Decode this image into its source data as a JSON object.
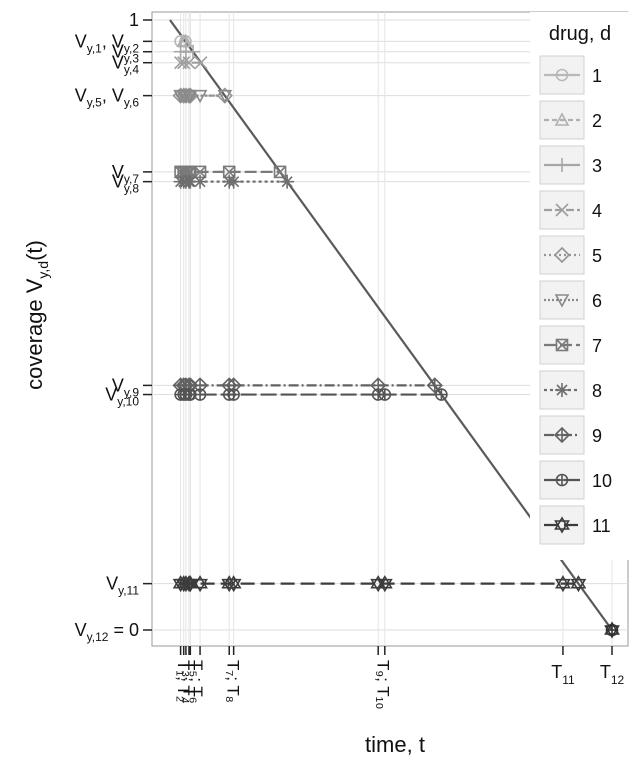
{
  "chart_data": {
    "type": "line",
    "title": "",
    "ylabel_main": "coverage  V",
    "ylabel_sub": "y,d",
    "ylabel_tail": "(t)",
    "xlabel": "time, t",
    "ylim": [
      0,
      1
    ],
    "grid": true,
    "legend_position": "right",
    "legend": {
      "title": "drug, d",
      "entries": [
        "1",
        "2",
        "3",
        "4",
        "5",
        "6",
        "7",
        "8",
        "9",
        "10",
        "11"
      ]
    },
    "x_ticks": [
      {
        "id": "t1",
        "x": 0.024,
        "label": "T",
        "sub": "1"
      },
      {
        "id": "t2",
        "x": 0.031,
        "label": "T",
        "sub": "2"
      },
      {
        "id": "t3",
        "x": 0.036,
        "label": "T",
        "sub": "3"
      },
      {
        "id": "t4",
        "x": 0.043,
        "label": "T",
        "sub": "4"
      },
      {
        "id": "t5",
        "x": 0.046,
        "label": "T",
        "sub": "5"
      },
      {
        "id": "t6",
        "x": 0.068,
        "label": "T",
        "sub": "6"
      },
      {
        "id": "t7",
        "x": 0.134,
        "label": "T",
        "sub": "7"
      },
      {
        "id": "t8",
        "x": 0.144,
        "label": "T",
        "sub": "8"
      },
      {
        "id": "t9",
        "x": 0.471,
        "label": "T",
        "sub": "9"
      },
      {
        "id": "t10",
        "x": 0.486,
        "label": "T",
        "sub": "10"
      },
      {
        "id": "t11",
        "x": 0.889,
        "label": "T",
        "sub": "11"
      },
      {
        "id": "t12",
        "x": 1.0,
        "label": "T",
        "sub": "12"
      }
    ],
    "x_tick_text": {
      "t1_t2": "T₁; T₂",
      "t3_t4": "T₃; T₄",
      "t5_t6": "T₅; T₆",
      "t7_t8": "T₇; T₈",
      "t9_t10": "T₉; T₁₀"
    },
    "y_ticks": [
      {
        "id": "one",
        "y": 1.0,
        "parts": [
          [
            "1",
            ""
          ]
        ]
      },
      {
        "id": "v12",
        "y": 0.965,
        "parts": [
          [
            "V",
            "y,1"
          ],
          [
            ", V",
            "y,2"
          ]
        ]
      },
      {
        "id": "v3",
        "y": 0.948,
        "parts": [
          [
            "V",
            "y,3"
          ]
        ]
      },
      {
        "id": "v4",
        "y": 0.93,
        "parts": [
          [
            "V",
            "y,4"
          ]
        ]
      },
      {
        "id": "v56",
        "y": 0.876,
        "parts": [
          [
            "V",
            "y,5"
          ],
          [
            ", V",
            "y,6"
          ]
        ]
      },
      {
        "id": "v7",
        "y": 0.751,
        "parts": [
          [
            "V",
            "y,7"
          ]
        ]
      },
      {
        "id": "v8",
        "y": 0.735,
        "parts": [
          [
            "V",
            "y,8"
          ]
        ]
      },
      {
        "id": "v9",
        "y": 0.401,
        "parts": [
          [
            "V",
            "y,9"
          ]
        ]
      },
      {
        "id": "v10",
        "y": 0.386,
        "parts": [
          [
            "V",
            "y,10"
          ]
        ]
      },
      {
        "id": "v11",
        "y": 0.076,
        "parts": [
          [
            "V",
            "y,11"
          ]
        ]
      },
      {
        "id": "v12zero",
        "y": 0.0,
        "parts": [
          [
            "V",
            "y,12"
          ],
          [
            " = 0",
            ""
          ]
        ]
      }
    ],
    "diagonal": {
      "x": [
        0.0,
        1.0
      ],
      "y": [
        1.0,
        0.0
      ]
    },
    "series": [
      {
        "name": "1",
        "marker": "circle",
        "color": "#b8b8b8",
        "dash": "",
        "level": 0.965,
        "points_x": [
          0.024
        ]
      },
      {
        "name": "2",
        "marker": "triangle-up",
        "color": "#b0b0b0",
        "dash": "5,3",
        "level": 0.965,
        "points_x": [
          0.031
        ]
      },
      {
        "name": "3",
        "marker": "plus",
        "color": "#a6a6a6",
        "dash": "",
        "level": 0.948,
        "points_x": [
          0.024,
          0.036
        ]
      },
      {
        "name": "4",
        "marker": "cross",
        "color": "#9e9e9e",
        "dash": "8,3",
        "level": 0.93,
        "points_x": [
          0.024,
          0.031,
          0.043
        ]
      },
      {
        "name": "5",
        "marker": "diamond",
        "color": "#949494",
        "dash": "2,3",
        "level": 0.876,
        "points_x": [
          0.024,
          0.031,
          0.036,
          0.043,
          0.046
        ]
      },
      {
        "name": "6",
        "marker": "triangle-down",
        "color": "#8a8a8a",
        "dash": "2,2",
        "level": 0.876,
        "points_x": [
          0.024,
          0.031,
          0.036,
          0.043,
          0.046,
          0.068
        ]
      },
      {
        "name": "7",
        "marker": "square-x",
        "color": "#7a7a7a",
        "dash": "12,4",
        "level": 0.751,
        "points_x": [
          0.024,
          0.031,
          0.036,
          0.043,
          0.046,
          0.068,
          0.134
        ]
      },
      {
        "name": "8",
        "marker": "asterisk",
        "color": "#6e6e6e",
        "dash": "3,3",
        "level": 0.735,
        "points_x": [
          0.024,
          0.031,
          0.036,
          0.043,
          0.046,
          0.068,
          0.134,
          0.144
        ]
      },
      {
        "name": "9",
        "marker": "diamond-plus",
        "color": "#626262",
        "dash": "10,3,2,3",
        "level": 0.401,
        "points_x": [
          0.024,
          0.031,
          0.036,
          0.043,
          0.046,
          0.068,
          0.134,
          0.144,
          0.471
        ]
      },
      {
        "name": "10",
        "marker": "circle-plus",
        "color": "#545454",
        "dash": "16,4",
        "level": 0.386,
        "points_x": [
          0.024,
          0.031,
          0.036,
          0.043,
          0.046,
          0.068,
          0.134,
          0.144,
          0.471,
          0.486
        ]
      },
      {
        "name": "11",
        "marker": "star",
        "color": "#3c3c3c",
        "dash": "14,6",
        "level": 0.076,
        "points_x": [
          0.024,
          0.031,
          0.036,
          0.043,
          0.046,
          0.068,
          0.134,
          0.144,
          0.471,
          0.486,
          0.889
        ]
      }
    ],
    "end_point": {
      "x": 1.0,
      "y": 0.0
    }
  }
}
